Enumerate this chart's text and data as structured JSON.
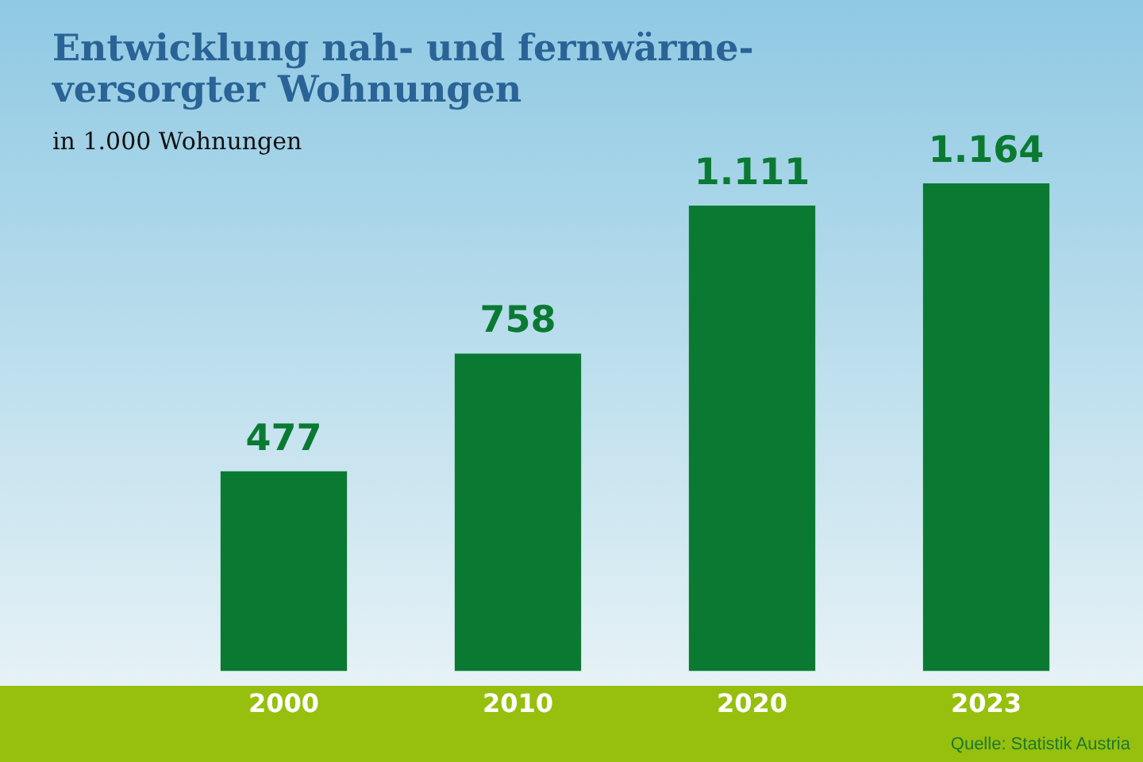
{
  "chart_data": {
    "type": "bar",
    "title": "Entwicklung nah- und fernwärme-\nversorgter Wohnungen",
    "subtitle": "in 1.000 Wohnungen",
    "categories": [
      "2000",
      "2010",
      "2020",
      "2023"
    ],
    "values": [
      477,
      758,
      1111,
      1164
    ],
    "value_labels": [
      "477",
      "758",
      "1.111",
      "1.164"
    ],
    "color": "#0a7a33",
    "grid": false,
    "legend": false,
    "annotations": [
      "Quelle: Statistik Austria"
    ]
  }
}
